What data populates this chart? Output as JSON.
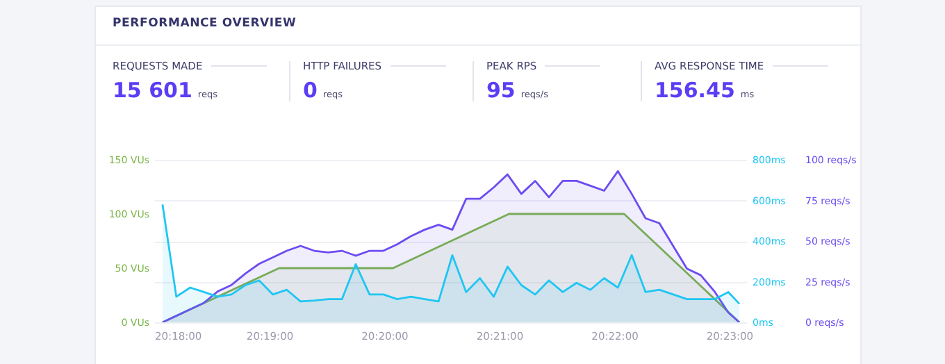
{
  "chart_data": {
    "type": "area",
    "title": "PERFORMANCE OVERVIEW",
    "annotations": [
      "REQUESTS MADE",
      "15 601 reqs",
      "HTTP FAILURES",
      "0 reqs",
      "PEAK RPS",
      "95 reqs/s",
      "AVG RESPONSE TIME",
      "156.45 ms"
    ],
    "xlim": [
      20.3,
      20.3858
    ],
    "xticks": [
      {
        "value": 20.3,
        "label": "20:18:00"
      },
      {
        "value": 20.31667,
        "label": "20:19:00"
      },
      {
        "value": 20.33333,
        "label": "20:20:00"
      },
      {
        "value": 20.35,
        "label": "20:21:00"
      },
      {
        "value": 20.36667,
        "label": "20:22:00"
      },
      {
        "value": 20.38333,
        "label": "20:23:00"
      }
    ],
    "ylim": [
      0,
      150
    ],
    "yticks": [
      {
        "value": 0,
        "label": "0 VUs"
      },
      {
        "value": 50,
        "label": "50 VUs"
      },
      {
        "value": 100,
        "label": "100 VUs"
      },
      {
        "value": 150,
        "label": "150 VUs"
      }
    ],
    "y2lim": [
      0,
      800
    ],
    "y2ticks": [
      {
        "value": 0,
        "label": "0ms"
      },
      {
        "value": 200,
        "label": "200ms"
      },
      {
        "value": 400,
        "label": "400ms"
      },
      {
        "value": 600,
        "label": "600ms"
      },
      {
        "value": 800,
        "label": "800ms"
      }
    ],
    "y3lim": [
      0,
      100
    ],
    "y3ticks": [
      {
        "value": 0,
        "label": "0 reqs/s"
      },
      {
        "value": 25,
        "label": "25 reqs/s"
      },
      {
        "value": 50,
        "label": "50 reqs/s"
      },
      {
        "value": 75,
        "label": "75 reqs/s"
      },
      {
        "value": 100,
        "label": "100 reqs/s"
      }
    ],
    "grid": "y",
    "series": [
      {
        "color": "#7ab648",
        "axis": "y",
        "x": [
          20.3012,
          20.3181,
          20.3346,
          20.3514,
          20.3681,
          20.3848
        ],
        "values": [
          0,
          50,
          50,
          100,
          100,
          0
        ]
      },
      {
        "color": "#6d4cf0",
        "axis": "y3",
        "x": [
          20.3012,
          20.3032,
          20.3052,
          20.3072,
          20.3092,
          20.3112,
          20.3132,
          20.3152,
          20.3172,
          20.3192,
          20.3212,
          20.3232,
          20.3252,
          20.3272,
          20.3292,
          20.3312,
          20.3332,
          20.3352,
          20.3372,
          20.3392,
          20.3412,
          20.3432,
          20.3452,
          20.3472,
          20.3492,
          20.3512,
          20.3532,
          20.3552,
          20.3572,
          20.3592,
          20.3612,
          20.3632,
          20.3652,
          20.3672,
          20.3692,
          20.3712,
          20.3732,
          20.3752,
          20.3772,
          20.3792,
          20.3812,
          20.3832,
          20.3848
        ],
        "values": [
          0,
          4,
          8,
          12,
          19,
          23,
          30,
          36,
          40,
          44,
          47,
          44,
          43,
          44,
          41,
          44,
          44,
          48,
          53,
          57,
          60,
          57,
          76,
          76,
          83,
          91,
          79,
          87,
          77,
          87,
          87,
          84,
          81,
          93,
          79,
          64,
          61,
          47,
          33,
          29,
          19,
          6,
          0
        ]
      },
      {
        "color": "#1fc6f2",
        "axis": "y2",
        "x": [
          20.3012,
          20.3032,
          20.3052,
          20.3072,
          20.3092,
          20.3112,
          20.3132,
          20.3152,
          20.3172,
          20.3192,
          20.3212,
          20.3232,
          20.3252,
          20.3272,
          20.3292,
          20.3312,
          20.3332,
          20.3352,
          20.3372,
          20.3392,
          20.3412,
          20.3432,
          20.3452,
          20.3472,
          20.3492,
          20.3512,
          20.3532,
          20.3552,
          20.3572,
          20.3592,
          20.3612,
          20.3632,
          20.3652,
          20.3672,
          20.3692,
          20.3712,
          20.3732,
          20.3752,
          20.3772,
          20.3792,
          20.3812,
          20.3832,
          20.3848
        ],
        "values": [
          580,
          126,
          171,
          149,
          126,
          137,
          183,
          206,
          137,
          160,
          103,
          107,
          114,
          114,
          286,
          137,
          137,
          114,
          126,
          114,
          103,
          330,
          149,
          217,
          126,
          274,
          183,
          137,
          206,
          149,
          194,
          160,
          217,
          171,
          331,
          149,
          160,
          137,
          114,
          114,
          114,
          149,
          91
        ]
      }
    ]
  }
}
